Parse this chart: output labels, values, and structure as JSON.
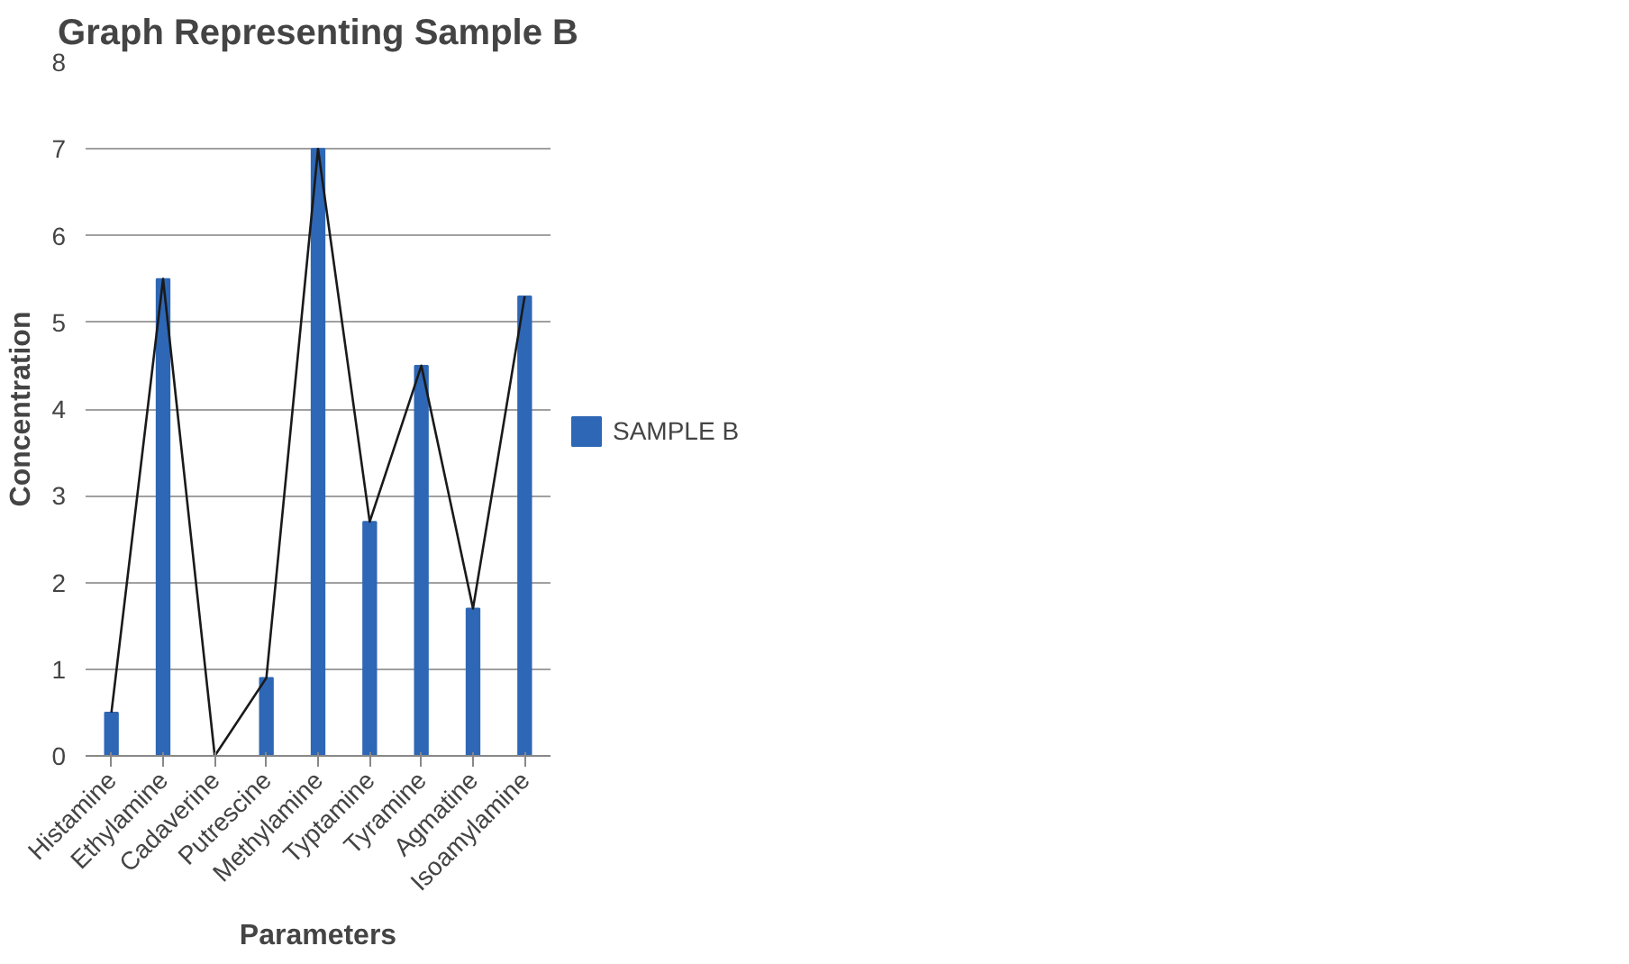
{
  "chart_data": {
    "type": "bar",
    "title": "Graph Representing Sample B",
    "xlabel": "Parameters",
    "ylabel": "Concentration",
    "categories": [
      "Histamine",
      "Ethylamine",
      "Cadaverine",
      "Putrescine",
      "Methylamine",
      "Typtamine",
      "Tyramine",
      "Agmatine",
      "Isoamylamine"
    ],
    "series": [
      {
        "name": "SAMPLE B",
        "color": "#2e67b5",
        "values": [
          0.5,
          5.5,
          0,
          0.9,
          7.0,
          2.7,
          4.5,
          1.7,
          5.3
        ]
      },
      {
        "type": "line",
        "color": "#1a1a1a",
        "values": [
          0.5,
          5.5,
          0,
          0.9,
          7.0,
          2.7,
          4.5,
          1.7,
          5.3
        ]
      }
    ],
    "ylim": [
      0,
      8
    ],
    "yticks": [
      0,
      1,
      2,
      3,
      4,
      5,
      6,
      7,
      8
    ],
    "grid": "y",
    "legend": "right",
    "marker": "none",
    "line_style": "solid"
  }
}
